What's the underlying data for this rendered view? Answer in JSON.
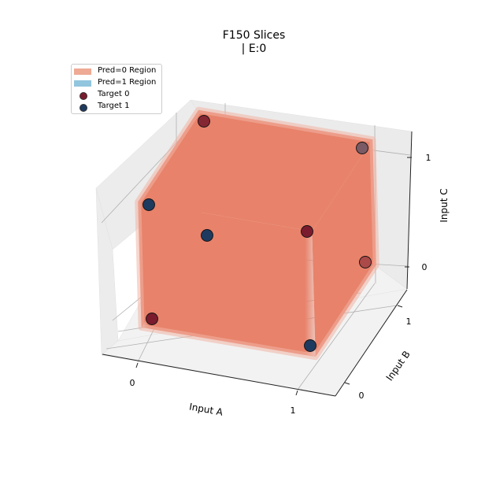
{
  "chart_data": {
    "type": "scatter",
    "projection": "3d",
    "title": "F150 Slices",
    "subtitle": "| E:0",
    "xlabel": "Input A",
    "ylabel": "Input B",
    "zlabel": "Input C",
    "xticks": [
      "0",
      "1"
    ],
    "yticks": [
      "0",
      "1"
    ],
    "zticks": [
      "0",
      "1"
    ],
    "xlim": [
      -0.1,
      1.1
    ],
    "ylim": [
      -0.1,
      1.1
    ],
    "zlim": [
      -0.1,
      1.1
    ],
    "grid": true,
    "legend_position": "top-left",
    "region": {
      "name": "Pred=0 Region",
      "color": "#e8826a",
      "x": [
        -0.05,
        1.05
      ],
      "y": [
        -0.05,
        1.05
      ],
      "z": [
        -0.05,
        1.05
      ]
    },
    "legend": [
      {
        "label": "Pred=0 Region",
        "kind": "patch",
        "color": "#eeaa94"
      },
      {
        "label": "Pred=1 Region",
        "kind": "patch",
        "color": "#92c5de"
      },
      {
        "label": "Target 0",
        "kind": "marker",
        "color": "#7a1c2e"
      },
      {
        "label": "Target 1",
        "kind": "marker",
        "color": "#1f3a5f"
      }
    ],
    "series": [
      {
        "name": "Target 0",
        "color": "#7a1c2e",
        "points": [
          [
            0,
            0,
            0
          ],
          [
            1,
            1,
            0
          ],
          [
            0,
            1,
            1
          ],
          [
            1,
            0,
            1
          ]
        ]
      },
      {
        "name": "Target 1",
        "color": "#1f3a5f",
        "points": [
          [
            1,
            0,
            0
          ],
          [
            0,
            1,
            0
          ],
          [
            0,
            0,
            1
          ],
          [
            1,
            1,
            1
          ]
        ]
      }
    ]
  }
}
